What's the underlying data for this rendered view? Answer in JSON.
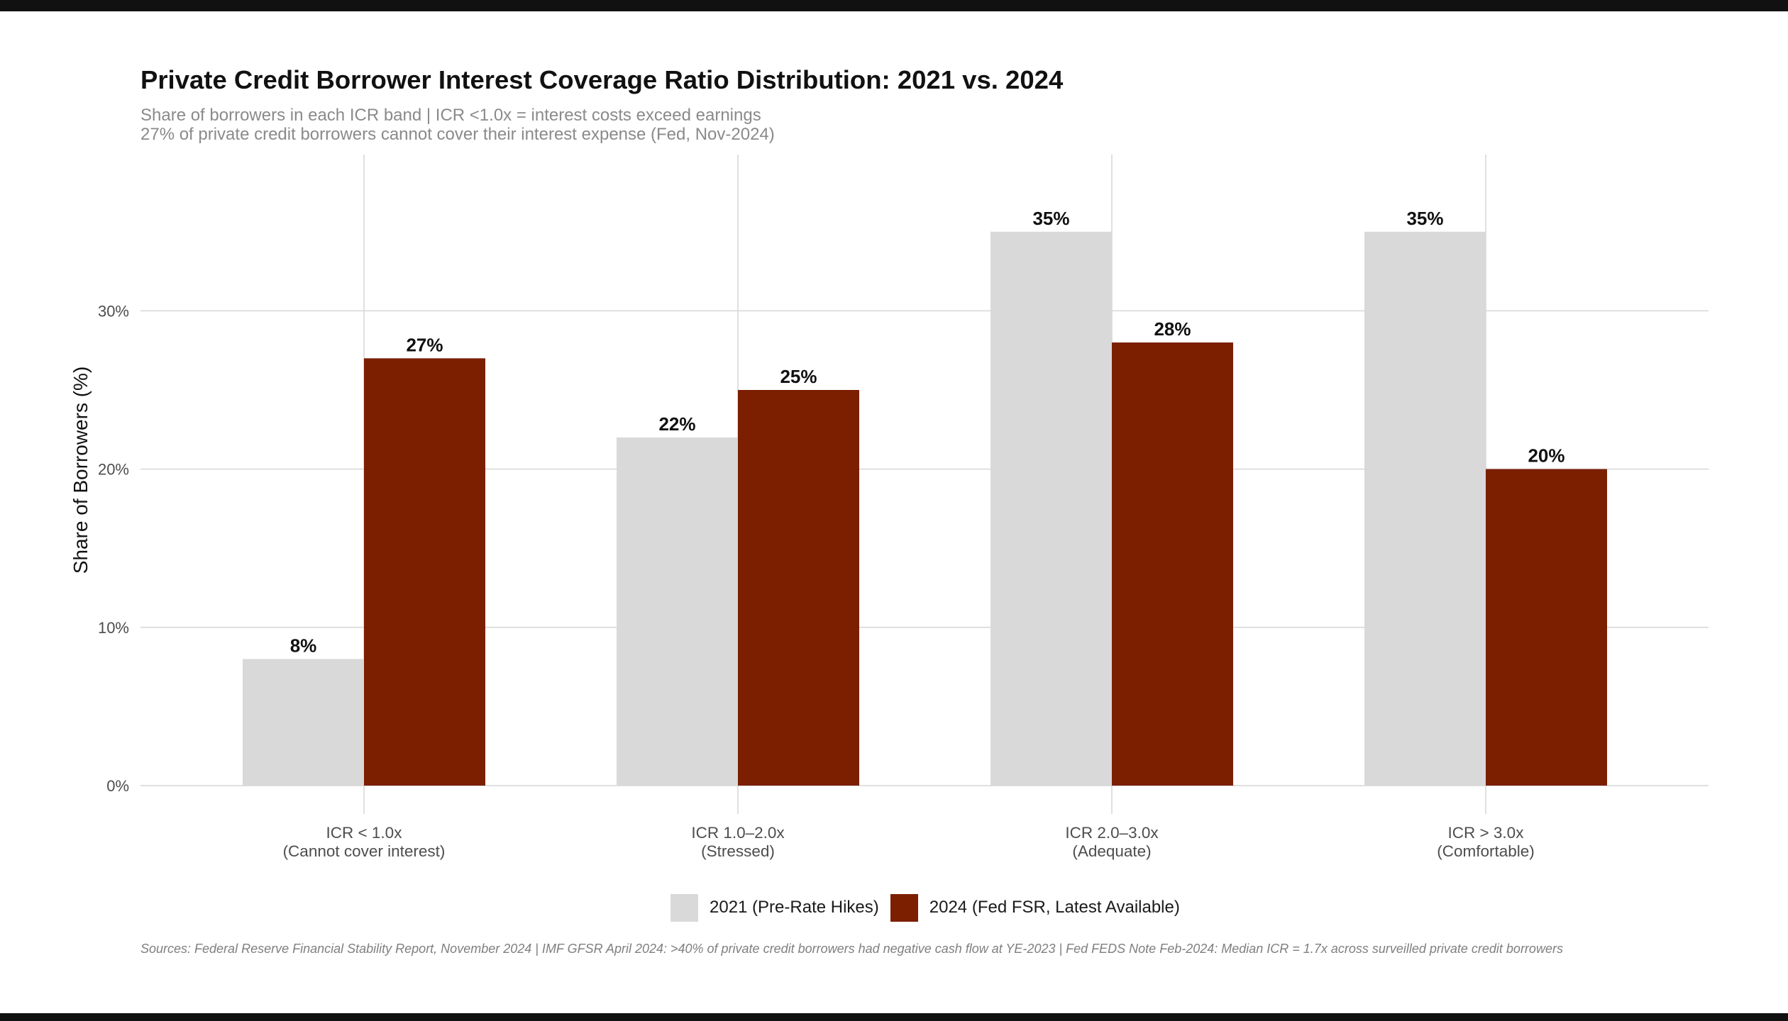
{
  "title": "Private Credit Borrower Interest Coverage Ratio Distribution: 2021 vs. 2024",
  "subtitle_lines": [
    "Share of borrowers in each ICR band | ICR <1.0x = interest costs exceed earnings",
    "27% of private credit borrowers cannot cover their interest expense (Fed, Nov-2024)"
  ],
  "caption": "Sources: Federal Reserve Financial Stability Report, November 2024  |  IMF GFSR April 2024: >40% of private credit borrowers had negative cash flow at YE-2023  |  Fed FEDS Note Feb-2024: Median ICR = 1.7x across surveilled private credit borrowers",
  "colors": {
    "series_2021": "#d9d9d9",
    "series_2024": "#7b1f00",
    "grid": "#d6d6d6",
    "text": "#111111",
    "axis_text": "#4d4d4d"
  },
  "chart_data": {
    "type": "bar",
    "categories": [
      [
        "ICR < 1.0x",
        "(Cannot cover interest)"
      ],
      [
        "ICR 1.0–2.0x",
        "(Stressed)"
      ],
      [
        "ICR 2.0–3.0x",
        "(Adequate)"
      ],
      [
        "ICR > 3.0x",
        "(Comfortable)"
      ]
    ],
    "series": [
      {
        "name": "2021 (Pre-Rate Hikes)",
        "values": [
          8,
          22,
          35,
          35
        ],
        "labels": [
          "8%",
          "22%",
          "35%",
          "35%"
        ]
      },
      {
        "name": "2024 (Fed FSR, Latest Available)",
        "values": [
          27,
          25,
          28,
          20
        ],
        "labels": [
          "27%",
          "25%",
          "28%",
          "20%"
        ]
      }
    ],
    "ylabel": "Share of Borrowers (%)",
    "xlabel": "",
    "yticks": [
      0,
      10,
      20,
      30
    ],
    "ytick_labels": [
      "0%",
      "10%",
      "20%",
      "30%"
    ],
    "ylim": [
      0,
      40
    ],
    "grid": true,
    "legend_position": "bottom"
  }
}
